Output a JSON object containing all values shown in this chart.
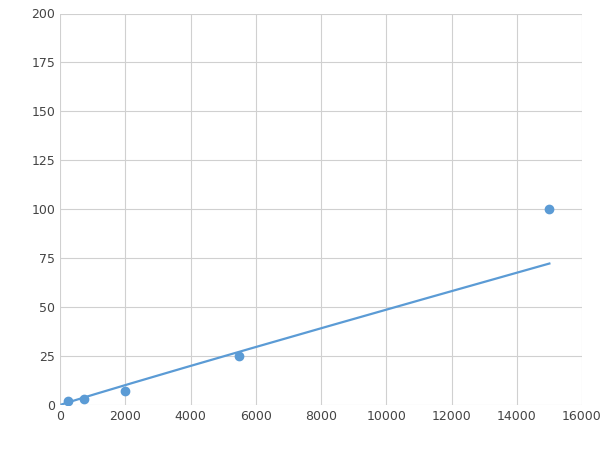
{
  "x": [
    250,
    750,
    2000,
    5500,
    15000
  ],
  "y": [
    2,
    3,
    7,
    25,
    100
  ],
  "line_color": "#5B9BD5",
  "marker_color": "#5B9BD5",
  "marker_size": 6,
  "line_width": 1.6,
  "xlim": [
    0,
    16000
  ],
  "ylim": [
    0,
    200
  ],
  "xticks": [
    0,
    2000,
    4000,
    6000,
    8000,
    10000,
    12000,
    14000,
    16000
  ],
  "yticks": [
    0,
    25,
    50,
    75,
    100,
    125,
    150,
    175,
    200
  ],
  "grid_color": "#d0d0d0",
  "background_color": "#ffffff",
  "figsize": [
    6.0,
    4.5
  ],
  "dpi": 100
}
